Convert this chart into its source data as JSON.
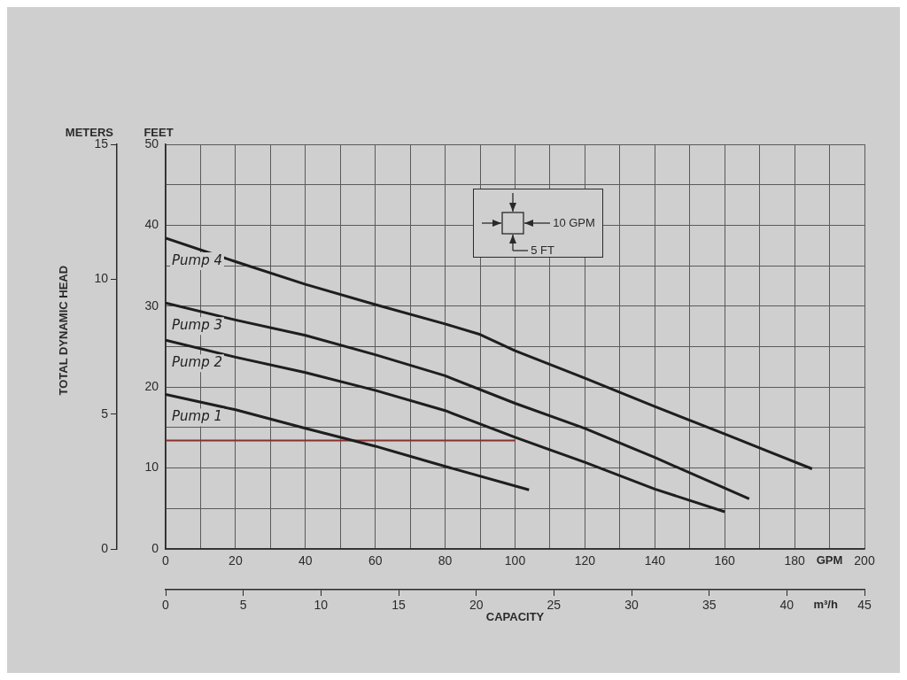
{
  "chart_data": {
    "type": "line",
    "xlabel": "GPM",
    "x2label": "m³/h",
    "ylabel": "FEET",
    "y2label": "METERS",
    "annotations": [
      "TOTAL DYNAMIC HEAD",
      "CAPACITY",
      "10 GPM",
      "5 FT"
    ],
    "xlim": [
      0,
      200
    ],
    "xticks": [
      0,
      {
        "value": 10,
        "label": null
      },
      20,
      {
        "value": 30,
        "label": null
      },
      40,
      {
        "value": 50,
        "label": null
      },
      60,
      {
        "value": 70,
        "label": null
      },
      80,
      {
        "value": 90,
        "label": null
      },
      100,
      {
        "value": 110,
        "label": null
      },
      120,
      {
        "value": 130,
        "label": null
      },
      140,
      {
        "value": 150,
        "label": null
      },
      160,
      {
        "value": 170,
        "label": null
      },
      180,
      {
        "value": 190,
        "label": null
      },
      200
    ],
    "x2lim": [
      0,
      45
    ],
    "x2ticks": [
      0,
      5,
      10,
      15,
      20,
      25,
      30,
      35,
      40,
      45
    ],
    "ylim": [
      0,
      50
    ],
    "yticks": [
      0,
      {
        "value": 5,
        "label": null
      },
      10,
      {
        "value": 15,
        "label": null
      },
      20,
      {
        "value": 25,
        "label": null
      },
      30,
      {
        "value": 35,
        "label": null
      },
      40,
      {
        "value": 45,
        "label": null
      },
      50
    ],
    "y2lim": [
      0,
      15
    ],
    "y2ticks": [
      0,
      5,
      10,
      15
    ],
    "grid": true,
    "marker": "none",
    "series": [
      {
        "name": "Pump 1",
        "color": "#1e1e1e",
        "x": [
          0,
          20,
          40,
          60,
          80,
          104
        ],
        "values": [
          19.1,
          17.2,
          14.9,
          12.7,
          10.2,
          7.3
        ]
      },
      {
        "name": "Pump 2",
        "color": "#1e1e1e",
        "x": [
          0,
          20,
          40,
          60,
          80,
          100,
          120,
          140,
          160
        ],
        "values": [
          25.8,
          23.7,
          21.8,
          19.6,
          17.1,
          13.8,
          10.7,
          7.4,
          4.6
        ]
      },
      {
        "name": "Pump 3",
        "color": "#1e1e1e",
        "x": [
          0,
          20,
          40,
          60,
          80,
          100,
          120,
          140,
          167
        ],
        "values": [
          30.4,
          28.3,
          26.4,
          24.0,
          21.4,
          18.0,
          14.9,
          11.3,
          6.2
        ]
      },
      {
        "name": "Pump 4",
        "color": "#1e1e1e",
        "x": [
          0,
          20,
          40,
          60,
          80,
          90,
          100,
          120,
          140,
          160,
          185
        ],
        "values": [
          38.4,
          35.5,
          32.7,
          30.2,
          27.8,
          26.5,
          24.5,
          21.1,
          17.6,
          14.2,
          9.9
        ]
      },
      {
        "color": "#8b2e2e",
        "x": [
          0,
          100
        ],
        "values": [
          13.4,
          13.4
        ]
      }
    ]
  }
}
